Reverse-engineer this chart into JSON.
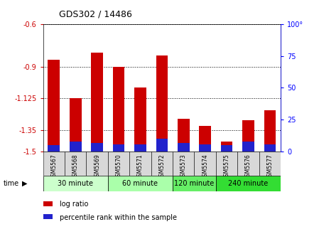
{
  "title": "GDS302 / 14486",
  "samples": [
    "GSM5567",
    "GSM5568",
    "GSM5569",
    "GSM5570",
    "GSM5571",
    "GSM5572",
    "GSM5573",
    "GSM5574",
    "GSM5575",
    "GSM5576",
    "GSM5577"
  ],
  "log_ratios": [
    -0.85,
    -1.125,
    -0.8,
    -0.9,
    -1.05,
    -0.82,
    -1.27,
    -1.32,
    -1.43,
    -1.28,
    -1.21
  ],
  "percentile_ranks": [
    5,
    8,
    7,
    6,
    6,
    10,
    7,
    6,
    5,
    8,
    6
  ],
  "bar_bottom": -1.5,
  "ylim_min": -1.5,
  "ylim_max": -0.6,
  "yticks": [
    -1.5,
    -1.35,
    -1.125,
    -0.9,
    -0.6
  ],
  "ytick_labels": [
    "-1.5",
    "-1.35",
    "-1.125",
    "-0.9",
    "-0.6"
  ],
  "right_yticks_pct": [
    0,
    25,
    50,
    75,
    100
  ],
  "right_ytick_labels": [
    "0",
    "25",
    "50",
    "75",
    "100°"
  ],
  "red_color": "#cc0000",
  "blue_color": "#2222cc",
  "groups": [
    {
      "label": "30 minute",
      "start": 0,
      "end": 3,
      "color": "#ccffcc"
    },
    {
      "label": "60 minute",
      "start": 3,
      "end": 6,
      "color": "#aaffaa"
    },
    {
      "label": "120 minute",
      "start": 6,
      "end": 8,
      "color": "#66ee66"
    },
    {
      "label": "240 minute",
      "start": 8,
      "end": 11,
      "color": "#33dd33"
    }
  ],
  "legend_log": "log ratio",
  "legend_pct": "percentile rank within the sample",
  "bar_width": 0.55
}
